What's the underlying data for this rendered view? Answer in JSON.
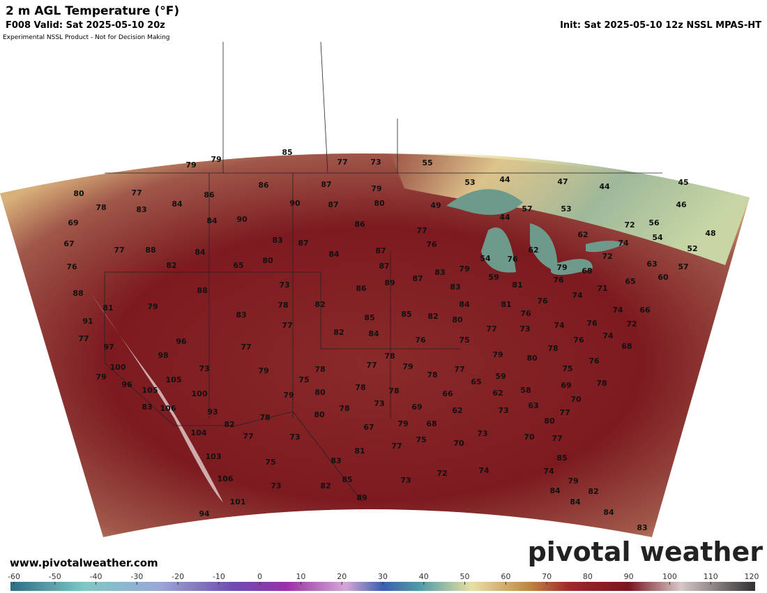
{
  "header": {
    "title": "2 m AGL Temperature (°F)",
    "valid": "F008 Valid: Sat 2025-05-10 20z",
    "init": "Init: Sat 2025-05-10 12z NSSL MPAS-HT",
    "disclaimer": "Experimental NSSL Product - Not for Decision Making"
  },
  "map": {
    "temperature_labels": [
      80,
      77,
      78,
      83,
      84,
      86,
      79,
      79,
      85,
      77,
      73,
      55,
      86,
      87,
      90,
      87,
      79,
      80,
      86,
      69,
      67,
      77,
      88,
      84,
      82,
      90,
      84,
      83,
      87,
      84,
      87,
      87,
      80,
      65,
      76,
      88,
      81,
      79,
      88,
      73,
      78,
      83,
      77,
      82,
      86,
      89,
      87,
      83,
      83,
      84,
      91,
      77,
      97,
      96,
      98,
      100,
      79,
      96,
      105,
      105,
      73,
      77,
      79,
      75,
      78,
      80,
      79,
      82,
      84,
      85,
      85,
      82,
      80,
      76,
      77,
      78,
      79,
      78,
      78,
      73,
      78,
      80,
      78,
      100,
      93,
      83,
      106,
      104,
      82,
      77,
      73,
      67,
      79,
      77,
      81,
      75,
      83,
      75,
      73,
      82,
      85,
      89,
      103,
      106,
      101,
      94,
      73,
      72,
      74,
      44,
      53,
      44,
      49,
      57,
      47,
      53,
      44,
      45,
      46,
      72,
      56,
      54,
      48,
      52,
      63,
      57,
      60,
      65,
      71,
      74,
      76,
      81,
      81,
      59,
      54,
      76,
      62,
      79,
      76,
      68,
      72,
      62,
      74,
      77,
      76,
      79,
      76,
      73,
      77,
      74,
      76,
      74,
      72,
      66,
      74,
      68,
      76,
      78,
      80,
      79,
      75,
      77,
      78,
      65,
      59,
      58,
      62,
      69,
      75,
      76,
      78,
      70,
      63,
      73,
      62,
      66,
      69,
      68,
      70,
      73,
      70,
      80,
      77,
      77,
      85,
      74,
      79,
      84,
      84,
      82,
      84,
      83
    ]
  },
  "colorbar": {
    "ticks": [
      -60,
      -50,
      -40,
      -30,
      -20,
      -10,
      0,
      10,
      20,
      30,
      40,
      50,
      60,
      70,
      80,
      90,
      100,
      110,
      120
    ]
  },
  "footer": {
    "url": "www.pivotalweather.com",
    "watermark": "pivotal weather"
  }
}
